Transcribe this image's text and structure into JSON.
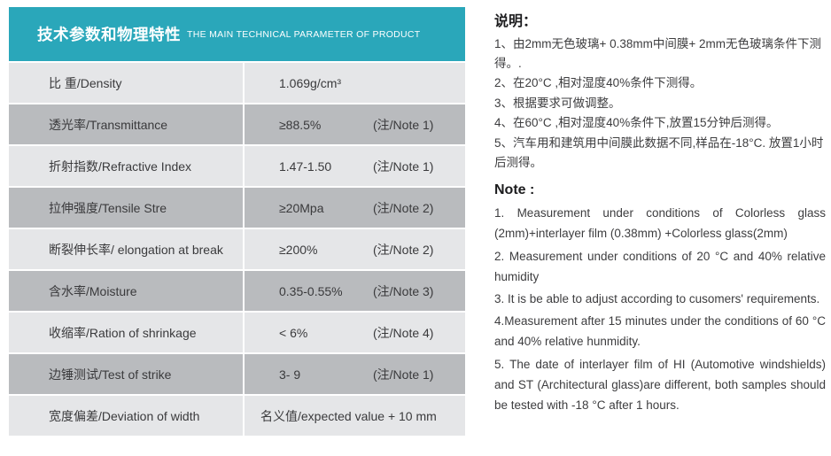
{
  "table": {
    "header": {
      "title_zh": "技术参数和物理特性",
      "title_en": "THE MAIN TECHNICAL PARAMETER OF PRODUCT"
    },
    "rows": [
      {
        "label": "比 重/Density",
        "value": "1.069g/cm³",
        "note": ""
      },
      {
        "label": "透光率/Transmittance",
        "value": "≥88.5%",
        "note": "(注/Note 1)"
      },
      {
        "label": "折射指数/Refractive Index",
        "value": "1.47-1.50",
        "note": "(注/Note 1)"
      },
      {
        "label": "拉伸强度/Tensile Stre",
        "value": "≥20Mpa",
        "note": "(注/Note 2)"
      },
      {
        "label": "断裂伸长率/ elongation at break",
        "value": "≥200%",
        "note": "(注/Note 2)"
      },
      {
        "label": "含水率/Moisture",
        "value": "0.35-0.55%",
        "note": "(注/Note 3)"
      },
      {
        "label": "收缩率/Ration of shrinkage",
        "value": "< 6%",
        "note": "(注/Note 4)"
      },
      {
        "label": "边锤测试/Test of strike",
        "value": "3- 9",
        "note": "(注/Note 1)"
      },
      {
        "label": "宽度偏差/Deviation of width",
        "value": "名义值/expected value  + 10 mm",
        "note": ""
      }
    ]
  },
  "notes_zh": {
    "heading": "说明：",
    "items": [
      "1、由2mm无色玻璃+ 0.38mm中间膜+ 2mm无色玻璃条件下测得。.",
      "2、在20°C ,相对湿度40%条件下测得。",
      "3、根据要求可做调整。",
      "4、在60°C ,相对湿度40%条件下,放置15分钟后测得。",
      "5、汽车用和建筑用中间膜此数据不同,样品在-18°C. 放置1小时后测得。"
    ]
  },
  "notes_en": {
    "heading": "Note :",
    "items": [
      "1. Measurement under conditions of Colorless glass (2mm)+interlayer film (0.38mm) +Colorless glass(2mm)",
      "2. Measurement under conditions of 20 °C and 40% relative humidity",
      "3. It is be able to adjust according to cusomers' requirements.",
      "4.Measurement after 15 minutes under the conditions of 60 °C and 40% relative hunmidity.",
      "5. The date of interlayer film of HI (Automotive windshields) and ST (Architectural glass)are different, both samples should be tested with -18 °C after 1 hours."
    ]
  },
  "colors": {
    "accent_teal": "#2AA7BA",
    "row_light": "#E5E6E8",
    "row_dark": "#B9BBBE"
  }
}
